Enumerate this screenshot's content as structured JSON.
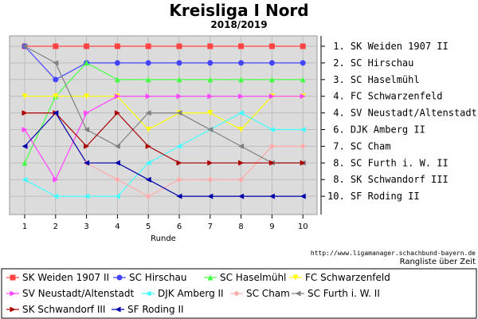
{
  "chart_data": {
    "type": "line",
    "title": "Kreisliga I Nord",
    "subtitle": "2018/2019",
    "xlabel": "Runde",
    "ylabel": "",
    "x": [
      1,
      2,
      3,
      4,
      5,
      6,
      7,
      8,
      9,
      10
    ],
    "ylim": [
      1,
      10
    ],
    "y_inverted": true,
    "grid": true,
    "legend_position": "bottom",
    "rank_labels": [
      "1. SK Weiden 1907 II",
      "2. SC Hirschau",
      "3. SC Haselmühl",
      "4. FC Schwarzenfeld",
      "4. SV Neustadt/Altenstadt",
      "6. DJK Amberg II",
      "7. SC Cham",
      "8. SC Furth i. W. II",
      "8. SK Schwandorf III",
      "10. SF Roding II"
    ],
    "footer_url": "http://www.ligamanager.schachbund-bayern.de",
    "footer_caption": "Rangliste über Zeit",
    "series": [
      {
        "name": "SK Weiden 1907 II",
        "color": "#ff4444",
        "marker": "square",
        "values": [
          1,
          1,
          1,
          1,
          1,
          1,
          1,
          1,
          1,
          1
        ]
      },
      {
        "name": "SC Hirschau",
        "color": "#4444ff",
        "marker": "circle",
        "values": [
          1,
          3,
          2,
          2,
          2,
          2,
          2,
          2,
          2,
          2
        ]
      },
      {
        "name": "SC Haselmühl",
        "color": "#44ff44",
        "marker": "triangle-up",
        "values": [
          8,
          4,
          2,
          3,
          3,
          3,
          3,
          3,
          3,
          3
        ]
      },
      {
        "name": "FC Schwarzenfeld",
        "color": "#ffff00",
        "marker": "triangle-down",
        "values": [
          4,
          4,
          4,
          4,
          6,
          5,
          5,
          6,
          4,
          4
        ]
      },
      {
        "name": "SV Neustadt/Altenstadt",
        "color": "#ff44ff",
        "marker": "triangle-right",
        "values": [
          6,
          9,
          5,
          4,
          4,
          4,
          4,
          4,
          4,
          4
        ]
      },
      {
        "name": "DJK Amberg II",
        "color": "#44ffff",
        "marker": "triangle-left",
        "values": [
          9,
          10,
          10,
          10,
          8,
          7,
          6,
          5,
          6,
          6
        ]
      },
      {
        "name": "SC Cham",
        "color": "#ffaaaa",
        "marker": "diamond",
        "values": [
          5,
          5,
          8,
          9,
          10,
          9,
          9,
          9,
          7,
          7
        ]
      },
      {
        "name": "SC Furth i. W. II",
        "color": "#808080",
        "marker": "triangle-left",
        "values": [
          1,
          2,
          6,
          7,
          5,
          5,
          6,
          7,
          8,
          8
        ]
      },
      {
        "name": "SK Schwandorf III",
        "color": "#aa0000",
        "marker": "triangle-right",
        "values": [
          5,
          5,
          7,
          5,
          7,
          8,
          8,
          8,
          8,
          8
        ]
      },
      {
        "name": "SF Roding II",
        "color": "#0000aa",
        "marker": "triangle-left",
        "values": [
          7,
          5,
          8,
          8,
          9,
          10,
          10,
          10,
          10,
          10
        ]
      }
    ]
  }
}
